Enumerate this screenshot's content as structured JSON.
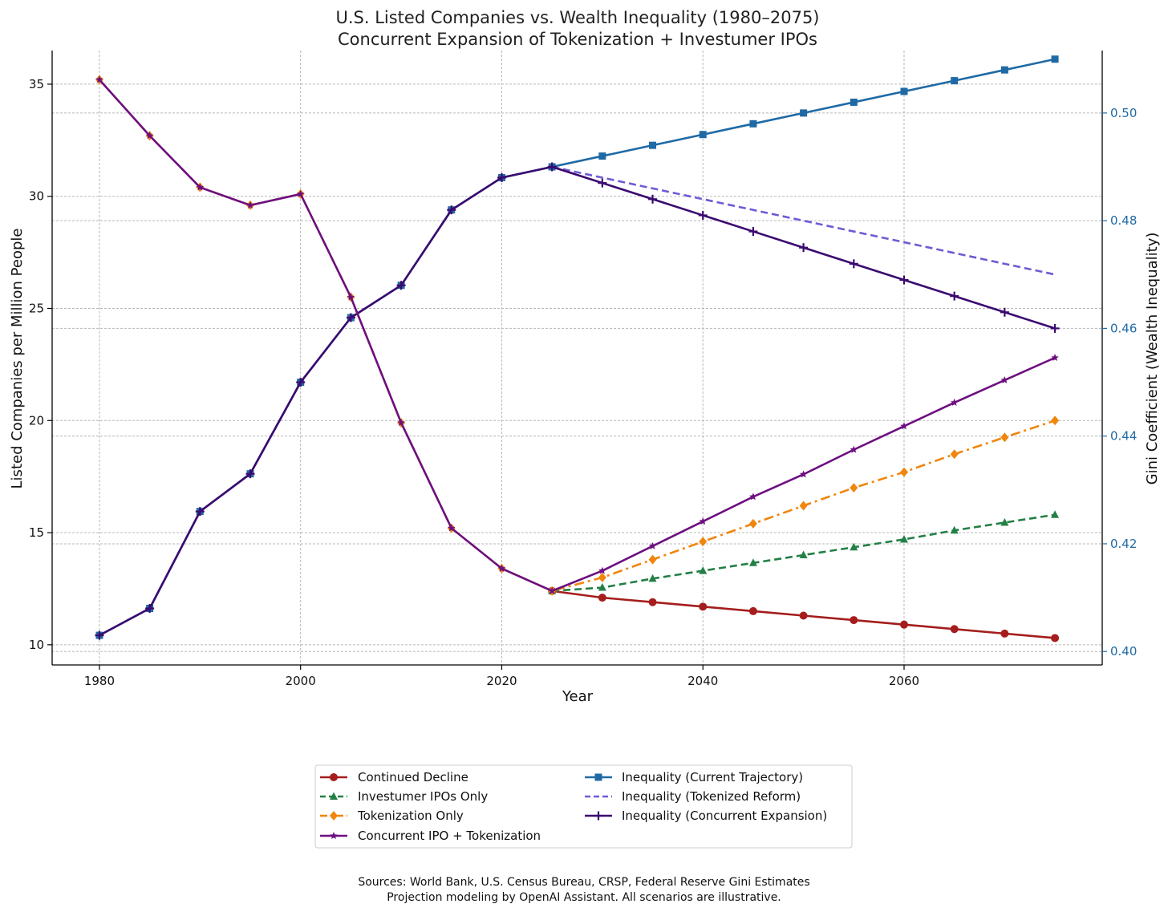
{
  "chart_data": {
    "type": "line",
    "title": "U.S. Listed Companies vs. Wealth Inequality (1980–2075)",
    "subtitle": "Concurrent Expansion of Tokenization + Investumer IPOs",
    "xlabel": "Year",
    "ylabel_left": "Listed Companies per Million People",
    "ylabel_right": "Gini Coefficient (Wealth Inequality)",
    "xlim": [
      1975.3,
      2079.7
    ],
    "ylim_left": [
      9.1,
      36.5
    ],
    "ylim_right": [
      0.3975,
      0.5116
    ],
    "x_ticks": [
      1980,
      2000,
      2020,
      2040,
      2060
    ],
    "x_tick_labels": [
      "1980",
      "2000",
      "2020",
      "2040",
      "2060"
    ],
    "y_ticks_left": [
      10,
      15,
      20,
      25,
      30,
      35
    ],
    "y_tick_labels_left": [
      "10",
      "15",
      "20",
      "25",
      "30",
      "35"
    ],
    "y_ticks_right": [
      0.4,
      0.42,
      0.44,
      0.46,
      0.48,
      0.5
    ],
    "y_tick_labels_right": [
      "0.40",
      "0.42",
      "0.44",
      "0.46",
      "0.48",
      "0.50"
    ],
    "grid": true,
    "legend_position": "bottom-center",
    "right_axis_color": "#1f6aa5",
    "series": [
      {
        "name": "Continued Decline",
        "axis": "left",
        "color": "#a51d1d",
        "style": "solid",
        "marker": "circle",
        "x": [
          2025,
          2030,
          2035,
          2040,
          2045,
          2050,
          2055,
          2060,
          2065,
          2070,
          2075
        ],
        "y": [
          12.4,
          12.1,
          11.9,
          11.7,
          11.5,
          11.3,
          11.1,
          10.9,
          10.7,
          10.5,
          10.3
        ]
      },
      {
        "name": "Investumer IPOs Only",
        "axis": "left",
        "color": "#238046",
        "style": "dashed",
        "marker": "triangle",
        "x": [
          2025,
          2030,
          2035,
          2040,
          2045,
          2050,
          2055,
          2060,
          2065,
          2070,
          2075
        ],
        "y": [
          12.4,
          12.55,
          12.95,
          13.3,
          13.65,
          14.0,
          14.35,
          14.7,
          15.1,
          15.45,
          15.8
        ]
      },
      {
        "name": "Tokenization Only",
        "axis": "left",
        "color": "#f0860e",
        "style": "dashdot",
        "marker": "diamond",
        "x": [
          1980,
          1985,
          1990,
          1995,
          2000,
          2005,
          2010,
          2015,
          2020,
          2025,
          2030,
          2035,
          2040,
          2045,
          2050,
          2055,
          2060,
          2065,
          2070,
          2075
        ],
        "y": [
          35.2,
          32.7,
          30.4,
          29.6,
          30.1,
          25.5,
          19.9,
          15.2,
          13.4,
          12.4,
          13.0,
          13.8,
          14.6,
          15.4,
          16.2,
          17.0,
          17.7,
          18.5,
          19.25,
          20.0
        ]
      },
      {
        "name": "Concurrent IPO + Tokenization",
        "axis": "left",
        "color": "#6d0f80",
        "style": "solid",
        "marker": "star",
        "x": [
          1980,
          1985,
          1990,
          1995,
          2000,
          2005,
          2010,
          2015,
          2020,
          2025,
          2030,
          2035,
          2040,
          2045,
          2050,
          2055,
          2060,
          2065,
          2070,
          2075
        ],
        "y": [
          35.2,
          32.7,
          30.4,
          29.6,
          30.1,
          25.5,
          19.9,
          15.2,
          13.4,
          12.4,
          13.3,
          14.4,
          15.5,
          16.6,
          17.6,
          18.7,
          19.75,
          20.8,
          21.8,
          22.8
        ]
      },
      {
        "name": "Inequality (Current Trajectory)",
        "axis": "right",
        "color": "#1f6aa5",
        "style": "solid",
        "marker": "square",
        "x": [
          1980,
          1985,
          1990,
          1995,
          2000,
          2005,
          2010,
          2015,
          2020,
          2025,
          2030,
          2035,
          2040,
          2045,
          2050,
          2055,
          2060,
          2065,
          2070,
          2075
        ],
        "y": [
          0.403,
          0.408,
          0.426,
          0.433,
          0.45,
          0.462,
          0.468,
          0.482,
          0.488,
          0.49,
          0.492,
          0.494,
          0.496,
          0.498,
          0.5,
          0.502,
          0.504,
          0.506,
          0.508,
          0.51
        ]
      },
      {
        "name": "Inequality (Tokenized Reform)",
        "axis": "right",
        "color": "#6f5ad6",
        "style": "dashed",
        "marker": "none",
        "x": [
          2025,
          2075
        ],
        "y": [
          0.49,
          0.47
        ]
      },
      {
        "name": "Inequality (Concurrent Expansion)",
        "axis": "right",
        "color": "#3b0a70",
        "style": "solid",
        "marker": "plus",
        "x": [
          1980,
          1985,
          1990,
          1995,
          2000,
          2005,
          2010,
          2015,
          2020,
          2025,
          2030,
          2035,
          2040,
          2045,
          2050,
          2055,
          2060,
          2065,
          2070,
          2075
        ],
        "y": [
          0.403,
          0.408,
          0.426,
          0.433,
          0.45,
          0.462,
          0.468,
          0.482,
          0.488,
          0.49,
          0.487,
          0.484,
          0.481,
          0.478,
          0.475,
          0.472,
          0.469,
          0.466,
          0.463,
          0.46
        ]
      }
    ],
    "legend_order": [
      [
        "Continued Decline",
        "Investumer IPOs Only",
        "Tokenization Only",
        "Concurrent IPO + Tokenization"
      ],
      [
        "Inequality (Current Trajectory)",
        "Inequality (Tokenized Reform)",
        "Inequality (Concurrent Expansion)"
      ]
    ],
    "sources": [
      "Sources: World Bank, U.S. Census Bureau, CRSP, Federal Reserve Gini Estimates",
      "Projection modeling by OpenAI Assistant. All scenarios are illustrative."
    ]
  }
}
